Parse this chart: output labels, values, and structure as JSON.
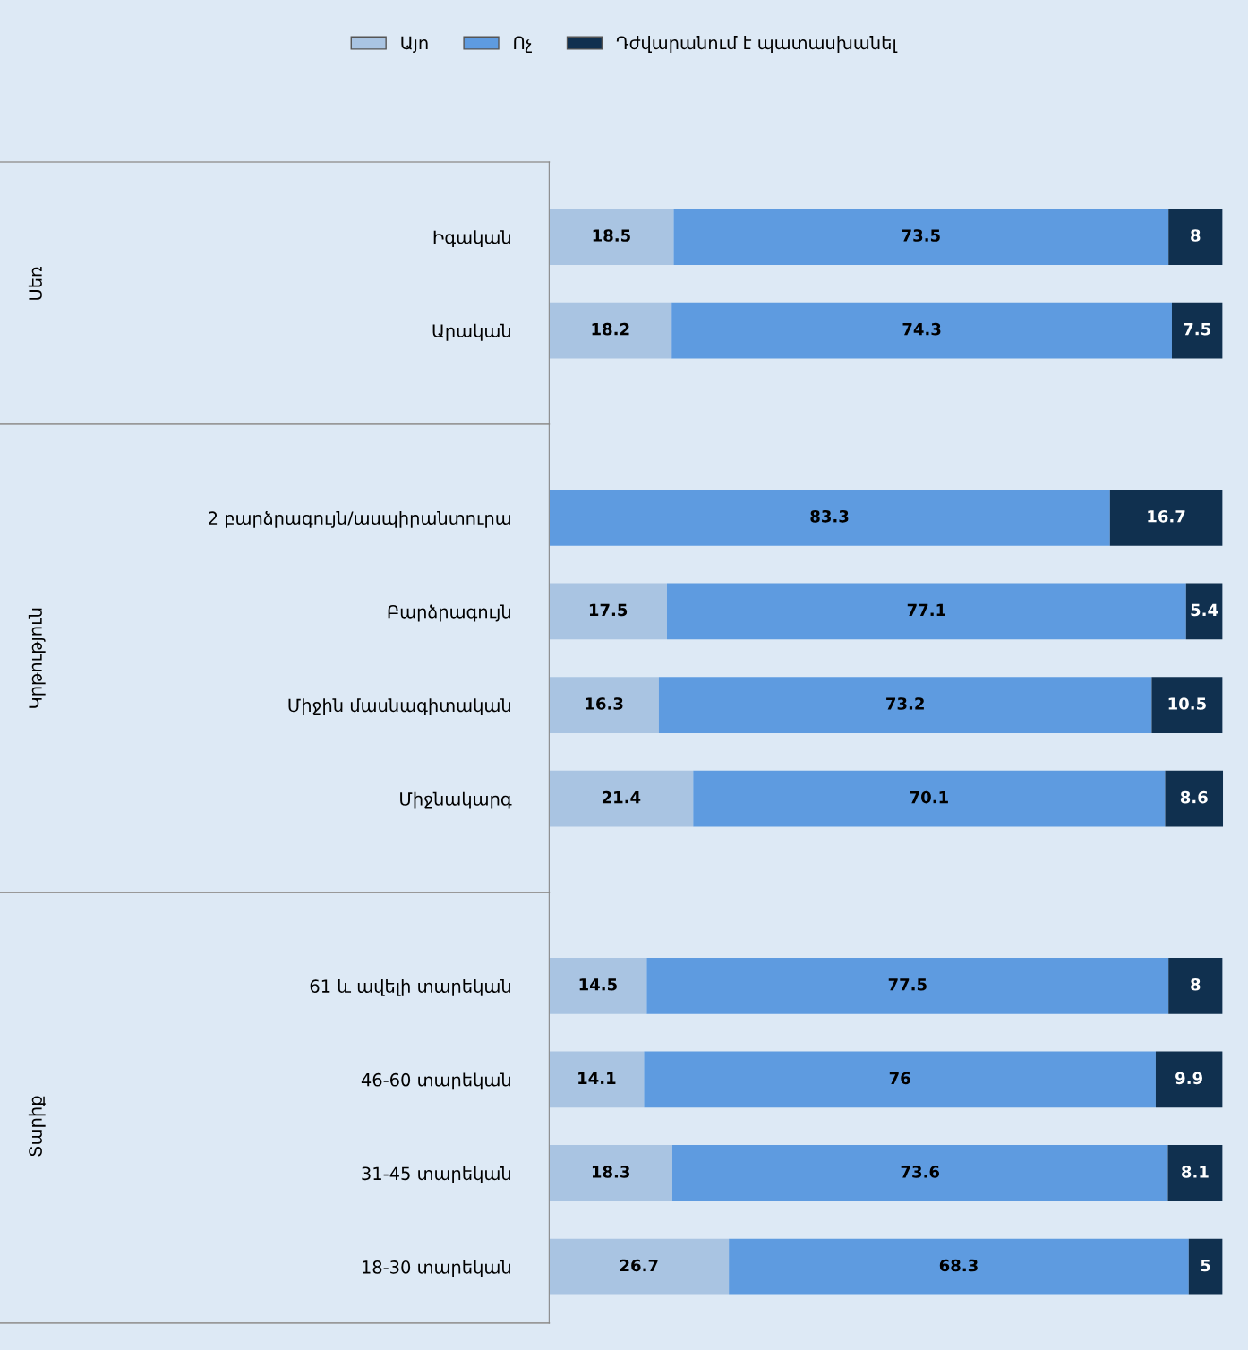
{
  "chart_data": {
    "type": "bar",
    "orientation": "horizontal",
    "stacked": true,
    "data_labels": true,
    "legend": "top",
    "grid": false,
    "categories": [
      "Իգական",
      "Արական",
      null,
      "2 բարձրագույն/ասպիրանտուրա",
      "Բարձրագույն",
      "Միջին մասնագիտական",
      "Միջնակարգ",
      null,
      "61 և ավելի տարեկան",
      "46-60 տարեկան",
      "31-45 տարեկան",
      "18-30 տարեկան"
    ],
    "series": [
      {
        "name": "Այո",
        "color": "#a9c4e2",
        "values": [
          18.5,
          18.2,
          null,
          null,
          17.5,
          16.3,
          21.4,
          null,
          14.5,
          14.1,
          18.3,
          26.7
        ]
      },
      {
        "name": "Ոչ",
        "color": "#5e9be0",
        "values": [
          73.5,
          74.3,
          null,
          83.3,
          77.1,
          73.2,
          70.1,
          null,
          77.5,
          76,
          73.6,
          68.3
        ]
      },
      {
        "name": "Դժվարանում է պատասխանել",
        "color": "#10304f",
        "values": [
          8,
          7.5,
          null,
          16.7,
          5.4,
          10.5,
          8.6,
          null,
          8,
          9.9,
          8.1,
          5
        ]
      }
    ],
    "annotations": [
      "Սեռ",
      "Կրթություն",
      "Տարիք"
    ]
  }
}
